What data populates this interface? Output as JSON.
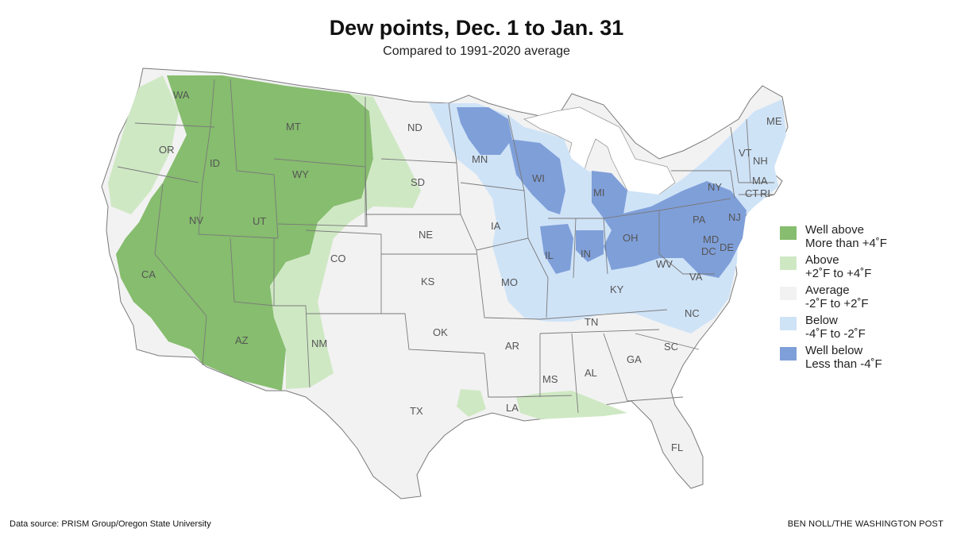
{
  "header": {
    "title": "Dew points, Dec. 1 to Jan. 31",
    "subtitle": "Compared to 1991-2020 average"
  },
  "legend": {
    "items": [
      {
        "key": "well_above",
        "line1": "Well above",
        "line2": "More than +4˚F",
        "color": "#86bd6e"
      },
      {
        "key": "above",
        "line1": "Above",
        "line2": "+2˚F to +4˚F",
        "color": "#cfe8c4"
      },
      {
        "key": "average",
        "line1": "Average",
        "line2": "-2˚F to +2˚F",
        "color": "#f2f2f2"
      },
      {
        "key": "below",
        "line1": "Below",
        "line2": "-4˚F to -2˚F",
        "color": "#cfe3f7"
      },
      {
        "key": "well_below",
        "line1": "Well below",
        "line2": "Less than -4˚F",
        "color": "#7f9fd9"
      }
    ]
  },
  "map": {
    "state_labels": [
      "WA",
      "OR",
      "CA",
      "ID",
      "NV",
      "MT",
      "WY",
      "UT",
      "AZ",
      "CO",
      "NM",
      "ND",
      "SD",
      "NE",
      "KS",
      "OK",
      "TX",
      "MN",
      "IA",
      "MO",
      "AR",
      "LA",
      "WI",
      "IL",
      "MS",
      "MI",
      "IN",
      "KY",
      "TN",
      "AL",
      "OH",
      "GA",
      "FL",
      "WV",
      "VA",
      "NC",
      "SC",
      "PA",
      "NY",
      "MD",
      "DC",
      "DE",
      "NJ",
      "CT",
      "RI",
      "MA",
      "VT",
      "NH",
      "ME"
    ],
    "water_color": "#ffffff",
    "border_color": "#7a7a7a"
  },
  "footer": {
    "source": "Data source: PRISM Group/Oregon State University",
    "credit": "BEN NOLL/THE WASHINGTON POST"
  }
}
